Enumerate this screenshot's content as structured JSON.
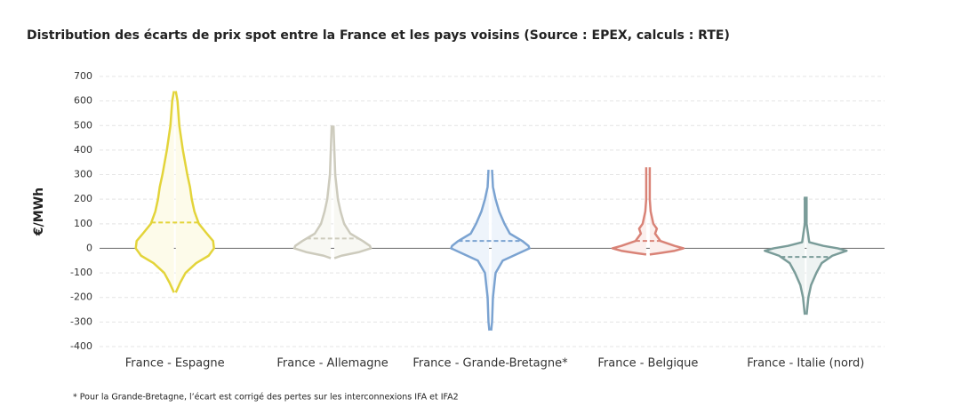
{
  "chart_data": {
    "type": "violin",
    "title": "Distribution des écarts de prix spot entre la France et les pays voisins (Source : EPEX, calculs : RTE)",
    "ylabel": "€/MWh",
    "footnote": "* Pour la Grande-Bretagne, l’écart est corrigé des pertes sur les interconnexions IFA et IFA2",
    "categories": [
      "France - Espagne",
      "France - Allemagne",
      "France - Grande-Bretagne*",
      "France - Belgique",
      "France - Italie (nord)"
    ],
    "ylim": [
      -400,
      700
    ],
    "yticks": [
      -400,
      -300,
      -200,
      -100,
      0,
      100,
      200,
      300,
      400,
      500,
      600,
      700
    ],
    "grid": true,
    "series": [
      {
        "color": "#e3d43a",
        "fill": "#fdfbea",
        "median": 105,
        "y": [
          640,
          600,
          500,
          400,
          300,
          250,
          200,
          150,
          100,
          60,
          30,
          0,
          -30,
          -60,
          -100,
          -140,
          -180
        ],
        "density": [
          1,
          3,
          5,
          9,
          14,
          17,
          19,
          22,
          27,
          36,
          43,
          44,
          38,
          24,
          12,
          6,
          1
        ]
      },
      {
        "color": "#cdcbbd",
        "fill": "#f8f8f3",
        "median": 40,
        "y": [
          500,
          400,
          300,
          200,
          150,
          100,
          60,
          30,
          10,
          0,
          -15,
          -30,
          -40
        ],
        "density": [
          1,
          2,
          3,
          6,
          9,
          13,
          20,
          34,
          42,
          43,
          30,
          10,
          2
        ]
      },
      {
        "color": "#7ba3d1",
        "fill": "#eef4fb",
        "median": 30,
        "y": [
          320,
          250,
          200,
          150,
          100,
          60,
          30,
          10,
          0,
          -20,
          -50,
          -100,
          -200,
          -300,
          -335
        ],
        "density": [
          2,
          3,
          6,
          10,
          16,
          22,
          36,
          43,
          44,
          32,
          14,
          6,
          3,
          2,
          1
        ]
      },
      {
        "color": "#d98377",
        "fill": "#fbefed",
        "median": 30,
        "y": [
          330,
          250,
          200,
          150,
          100,
          80,
          60,
          30,
          10,
          0,
          -10,
          -20,
          -25
        ],
        "density": [
          2,
          2,
          2,
          3,
          6,
          10,
          8,
          14,
          30,
          40,
          30,
          12,
          2
        ]
      },
      {
        "color": "#7a9c99",
        "fill": "#eef3f2",
        "median": -35,
        "y": [
          210,
          100,
          25,
          10,
          0,
          -10,
          -30,
          -60,
          -100,
          -150,
          -200,
          -270
        ],
        "density": [
          1,
          1,
          4,
          20,
          36,
          46,
          30,
          18,
          12,
          6,
          3,
          1
        ]
      }
    ]
  }
}
